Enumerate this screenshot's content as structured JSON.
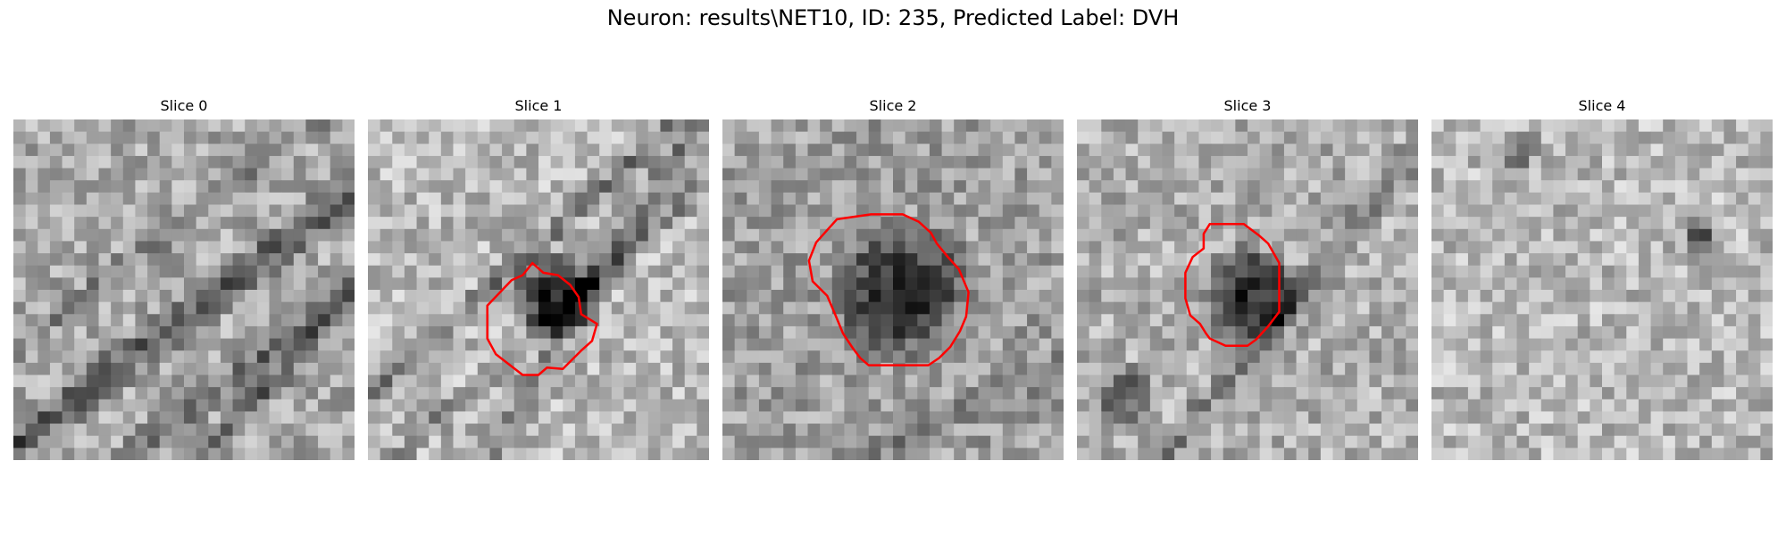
{
  "figure": {
    "title": "Neuron: results\\NET10, ID: 235, Predicted Label: DVH"
  },
  "contour_color": "#ff0000",
  "panels": [
    {
      "title": "Slice 0",
      "has_contour": false,
      "darkness_blobs": "diagonal-streaks-lower-left"
    },
    {
      "title": "Slice 1",
      "has_contour": true,
      "darkness_blobs": "dark-cell-center"
    },
    {
      "title": "Slice 2",
      "has_contour": true,
      "darkness_blobs": "dark-cell-center-large"
    },
    {
      "title": "Slice 3",
      "has_contour": true,
      "darkness_blobs": "dark-cell-center-right"
    },
    {
      "title": "Slice 4",
      "has_contour": false,
      "darkness_blobs": "speckled-light"
    }
  ]
}
